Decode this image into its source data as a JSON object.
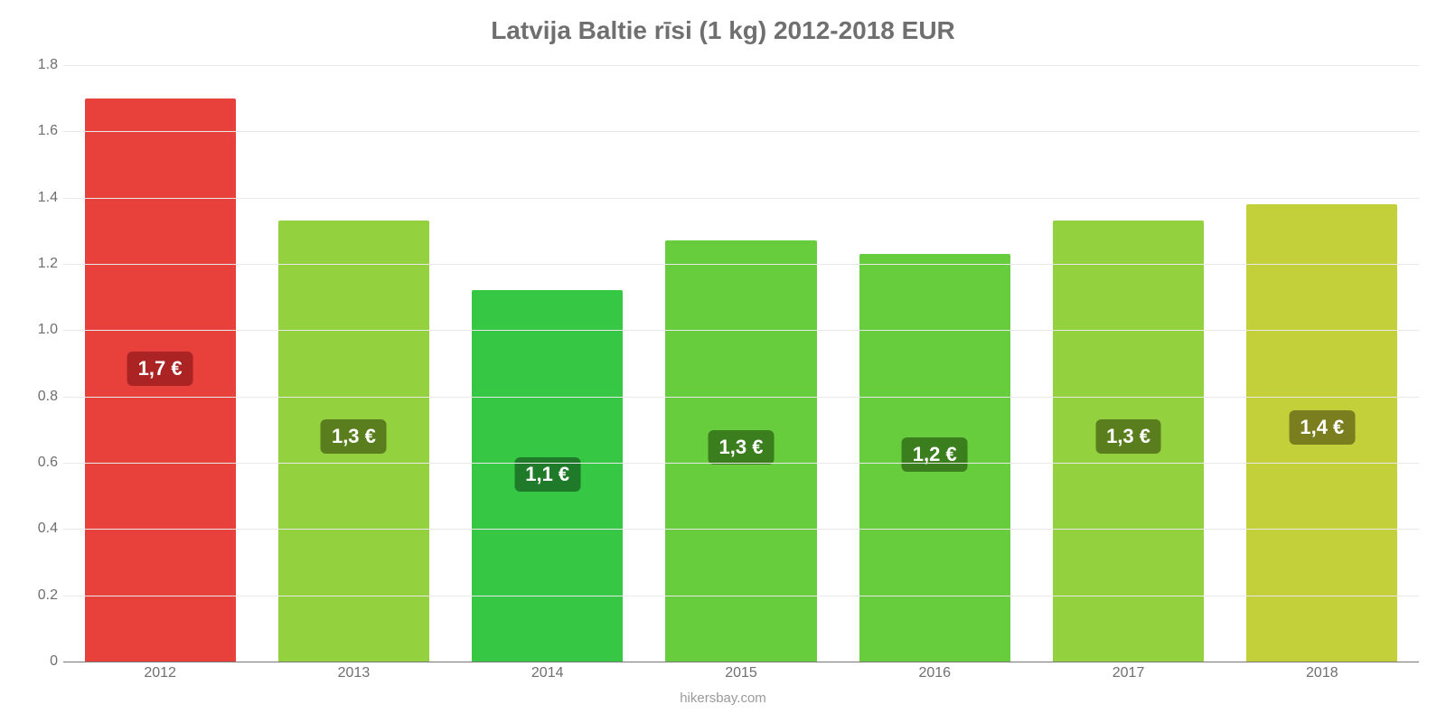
{
  "chart": {
    "type": "bar",
    "title": "Latvija Baltie rīsi (1 kg) 2012-2018 EUR",
    "title_fontsize": 28,
    "title_color": "#6f6f6f",
    "background_color": "#ffffff",
    "grid_color": "#e8e8e8",
    "baseline_color": "#777777",
    "tick_color": "#6f6f6f",
    "tick_fontsize": 16,
    "ylim": [
      0,
      1.8
    ],
    "ytick_step": 0.2,
    "yticks": [
      "0",
      "0.2",
      "0.4",
      "0.6",
      "0.8",
      "1.0",
      "1.2",
      "1.4",
      "1.6",
      "1.8"
    ],
    "bar_width": 0.78,
    "categories": [
      "2012",
      "2013",
      "2014",
      "2015",
      "2016",
      "2017",
      "2018"
    ],
    "values": [
      1.7,
      1.33,
      1.12,
      1.27,
      1.23,
      1.33,
      1.38
    ],
    "value_labels": [
      "1,7 €",
      "1,3 €",
      "1,1 €",
      "1,3 €",
      "1,2 €",
      "1,3 €",
      "1,4 €"
    ],
    "bar_colors": [
      "#e8403b",
      "#93d13f",
      "#36c744",
      "#67cd3c",
      "#67cd3c",
      "#93d13f",
      "#c3d03a"
    ],
    "badge_colors": [
      "#ab2323",
      "#5a7e1e",
      "#1f7a29",
      "#3a7e1e",
      "#3a7e1e",
      "#5a7e1e",
      "#7a7e1e"
    ],
    "badge_fontsize": 22,
    "badge_text_color": "#ffffff",
    "credit": "hikersbay.com",
    "credit_color": "#9a9a9a",
    "credit_fontsize": 15
  }
}
